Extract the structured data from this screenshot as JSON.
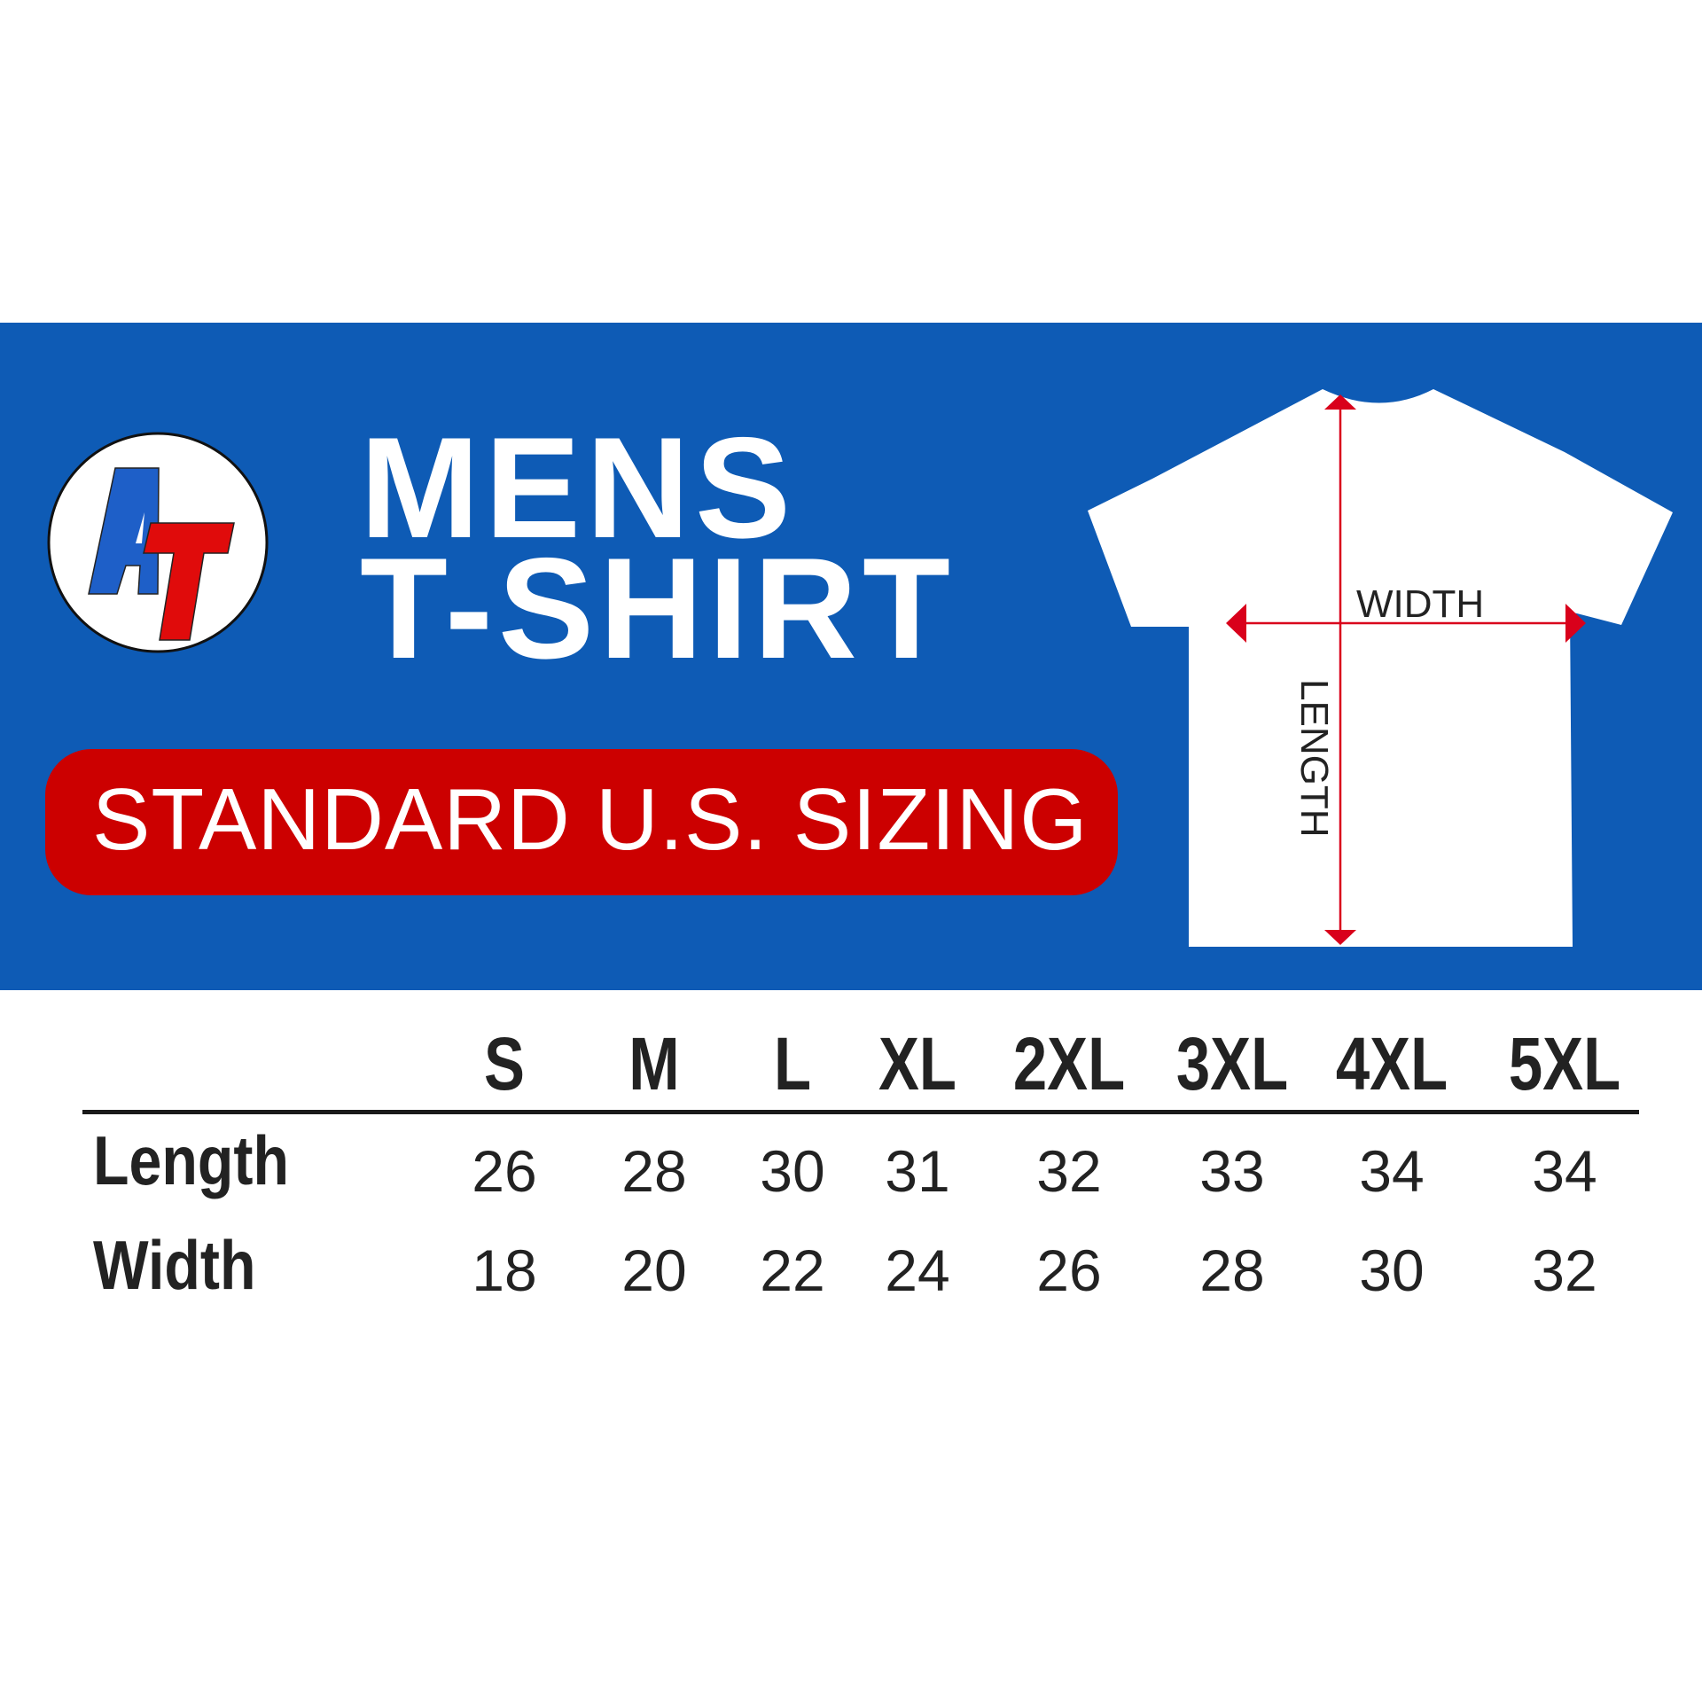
{
  "brand": {
    "logo_text": "AT",
    "colors": {
      "blue": "#0e5bb5",
      "red": "#cc0000",
      "logo_blue": "#1e5fc8"
    }
  },
  "title": {
    "line1": "MENS",
    "line2": "T-SHIRT"
  },
  "badge": {
    "label": "STANDARD U.S. SIZING"
  },
  "diagram": {
    "width_label": "WIDTH",
    "length_label": "LENGTH"
  },
  "table": {
    "sizes": [
      "S",
      "M",
      "L",
      "XL",
      "2XL",
      "3XL",
      "4XL",
      "5XL"
    ],
    "rows": [
      {
        "label": "Length",
        "values": [
          "26",
          "28",
          "30",
          "31",
          "32",
          "33",
          "34",
          "34"
        ]
      },
      {
        "label": "Width",
        "values": [
          "18",
          "20",
          "22",
          "24",
          "26",
          "28",
          "30",
          "32"
        ]
      }
    ]
  }
}
